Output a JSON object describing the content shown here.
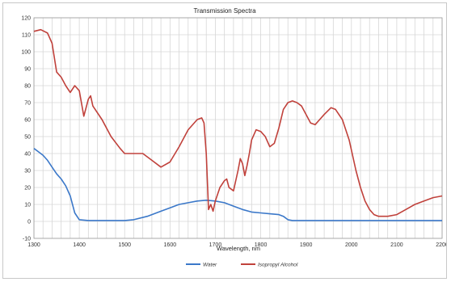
{
  "chart_data": {
    "type": "line",
    "title": "Transmission Spectra",
    "xlabel": "Wavelength, nm",
    "ylabel": "",
    "xlim": [
      1300,
      2200
    ],
    "ylim": [
      -10,
      120
    ],
    "x_ticks": [
      1300,
      1400,
      1500,
      1600,
      1700,
      1800,
      1900,
      2000,
      2100,
      2200
    ],
    "y_ticks": [
      -10,
      0,
      10,
      20,
      30,
      40,
      50,
      60,
      70,
      80,
      90,
      100,
      110,
      120
    ],
    "grid": true,
    "legend_position": "bottom",
    "series": [
      {
        "name": "Water",
        "color": "#3b78c9",
        "points": [
          [
            1300,
            43
          ],
          [
            1310,
            41
          ],
          [
            1320,
            39
          ],
          [
            1330,
            36
          ],
          [
            1340,
            32
          ],
          [
            1350,
            28
          ],
          [
            1360,
            25
          ],
          [
            1370,
            21
          ],
          [
            1380,
            15
          ],
          [
            1390,
            5
          ],
          [
            1400,
            1
          ],
          [
            1420,
            0.5
          ],
          [
            1450,
            0.5
          ],
          [
            1480,
            0.5
          ],
          [
            1500,
            0.5
          ],
          [
            1520,
            1
          ],
          [
            1550,
            3
          ],
          [
            1580,
            6
          ],
          [
            1600,
            8
          ],
          [
            1620,
            10
          ],
          [
            1640,
            11
          ],
          [
            1660,
            12
          ],
          [
            1680,
            12.5
          ],
          [
            1700,
            12
          ],
          [
            1720,
            11
          ],
          [
            1740,
            9
          ],
          [
            1760,
            7
          ],
          [
            1780,
            5.5
          ],
          [
            1800,
            5
          ],
          [
            1820,
            4.5
          ],
          [
            1840,
            4
          ],
          [
            1850,
            3
          ],
          [
            1860,
            1
          ],
          [
            1870,
            0.5
          ],
          [
            1900,
            0.5
          ],
          [
            2000,
            0.5
          ],
          [
            2100,
            0.5
          ],
          [
            2200,
            0.5
          ]
        ]
      },
      {
        "name": "Isopropyl Alcohol",
        "color": "#c0413b",
        "points": [
          [
            1300,
            112
          ],
          [
            1315,
            113
          ],
          [
            1330,
            111
          ],
          [
            1340,
            105
          ],
          [
            1350,
            88
          ],
          [
            1360,
            85
          ],
          [
            1370,
            80
          ],
          [
            1380,
            76
          ],
          [
            1390,
            80
          ],
          [
            1400,
            77
          ],
          [
            1410,
            62
          ],
          [
            1420,
            72
          ],
          [
            1425,
            74
          ],
          [
            1430,
            68
          ],
          [
            1450,
            60
          ],
          [
            1470,
            50
          ],
          [
            1490,
            43
          ],
          [
            1500,
            40
          ],
          [
            1520,
            40
          ],
          [
            1540,
            40
          ],
          [
            1560,
            36
          ],
          [
            1580,
            32
          ],
          [
            1600,
            35
          ],
          [
            1620,
            44
          ],
          [
            1640,
            54
          ],
          [
            1660,
            60
          ],
          [
            1670,
            61
          ],
          [
            1675,
            58
          ],
          [
            1680,
            40
          ],
          [
            1685,
            7
          ],
          [
            1690,
            10
          ],
          [
            1695,
            6
          ],
          [
            1700,
            12
          ],
          [
            1710,
            20
          ],
          [
            1720,
            24
          ],
          [
            1725,
            25
          ],
          [
            1730,
            20
          ],
          [
            1740,
            18
          ],
          [
            1750,
            30
          ],
          [
            1755,
            37
          ],
          [
            1760,
            34
          ],
          [
            1765,
            27
          ],
          [
            1770,
            33
          ],
          [
            1775,
            40
          ],
          [
            1780,
            48
          ],
          [
            1790,
            54
          ],
          [
            1800,
            53
          ],
          [
            1810,
            50
          ],
          [
            1820,
            44
          ],
          [
            1830,
            46
          ],
          [
            1840,
            55
          ],
          [
            1850,
            66
          ],
          [
            1860,
            70
          ],
          [
            1870,
            71
          ],
          [
            1880,
            70
          ],
          [
            1890,
            68
          ],
          [
            1900,
            63
          ],
          [
            1910,
            58
          ],
          [
            1920,
            57
          ],
          [
            1930,
            60
          ],
          [
            1940,
            63
          ],
          [
            1955,
            67
          ],
          [
            1965,
            66
          ],
          [
            1980,
            60
          ],
          [
            1995,
            48
          ],
          [
            2010,
            30
          ],
          [
            2020,
            20
          ],
          [
            2030,
            12
          ],
          [
            2040,
            7
          ],
          [
            2050,
            4
          ],
          [
            2060,
            3
          ],
          [
            2080,
            3
          ],
          [
            2100,
            4
          ],
          [
            2120,
            7
          ],
          [
            2140,
            10
          ],
          [
            2160,
            12
          ],
          [
            2180,
            14
          ],
          [
            2200,
            15
          ]
        ]
      }
    ]
  }
}
